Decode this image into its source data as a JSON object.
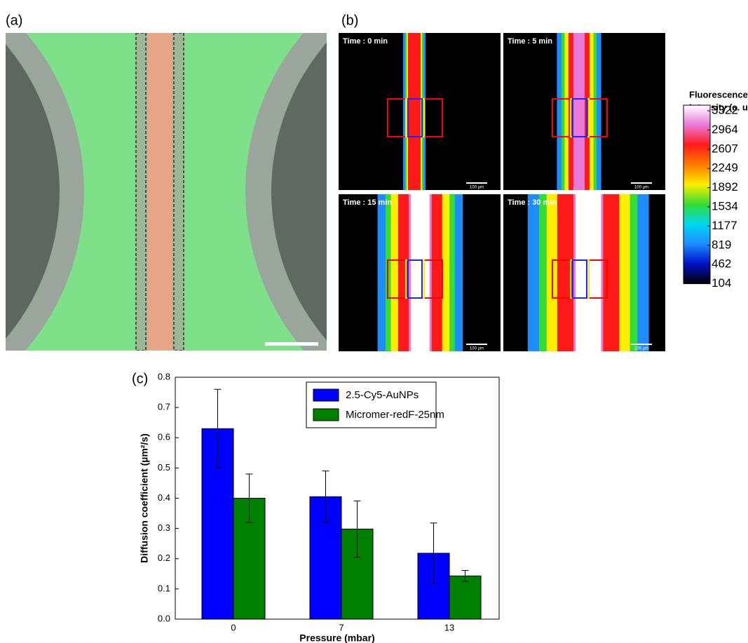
{
  "panel_a": {
    "label": "(a)"
  },
  "panel_b": {
    "label": "(b)",
    "frames": [
      "Time : 0 min",
      "Time : 5 min",
      "Time : 15 min",
      "Time : 30 min"
    ],
    "scale_bar": "100 µm",
    "colorbar": {
      "title": [
        "Fluorescence",
        "Intensity (a. u.)"
      ],
      "ticks": [
        3322,
        2964,
        2607,
        2249,
        1892,
        1534,
        1177,
        819,
        462,
        104
      ],
      "colors": [
        "#ffffff",
        "#e879d8",
        "#ff1a1a",
        "#ff7a00",
        "#ffee00",
        "#33dd33",
        "#00d8f0",
        "#1e8cff",
        "#0010c8",
        "#000000"
      ]
    }
  },
  "chart_data": {
    "type": "bar",
    "label": "(c)",
    "categories": [
      "0",
      "7",
      "13"
    ],
    "series": [
      {
        "name": "2.5-Cy5-AuNPs",
        "color": "#0000ff",
        "values": [
          0.63,
          0.405,
          0.218
        ],
        "errors": [
          0.13,
          0.085,
          0.1
        ]
      },
      {
        "name": "Micromer-redF-25nm",
        "color": "#008000",
        "values": [
          0.4,
          0.298,
          0.143
        ],
        "errors": [
          0.08,
          0.093,
          0.018
        ]
      }
    ],
    "x_label": "Pressure (mbar)",
    "y_label": "Diffusion coefficient (µm²/s)",
    "ylim": [
      0,
      0.8
    ],
    "yticks": [
      {
        "value": 0,
        "label": "0.0"
      },
      0.1,
      0.2,
      0.3,
      0.4,
      0.5,
      0.6,
      0.7,
      0.8
    ],
    "legend": "upper right"
  }
}
